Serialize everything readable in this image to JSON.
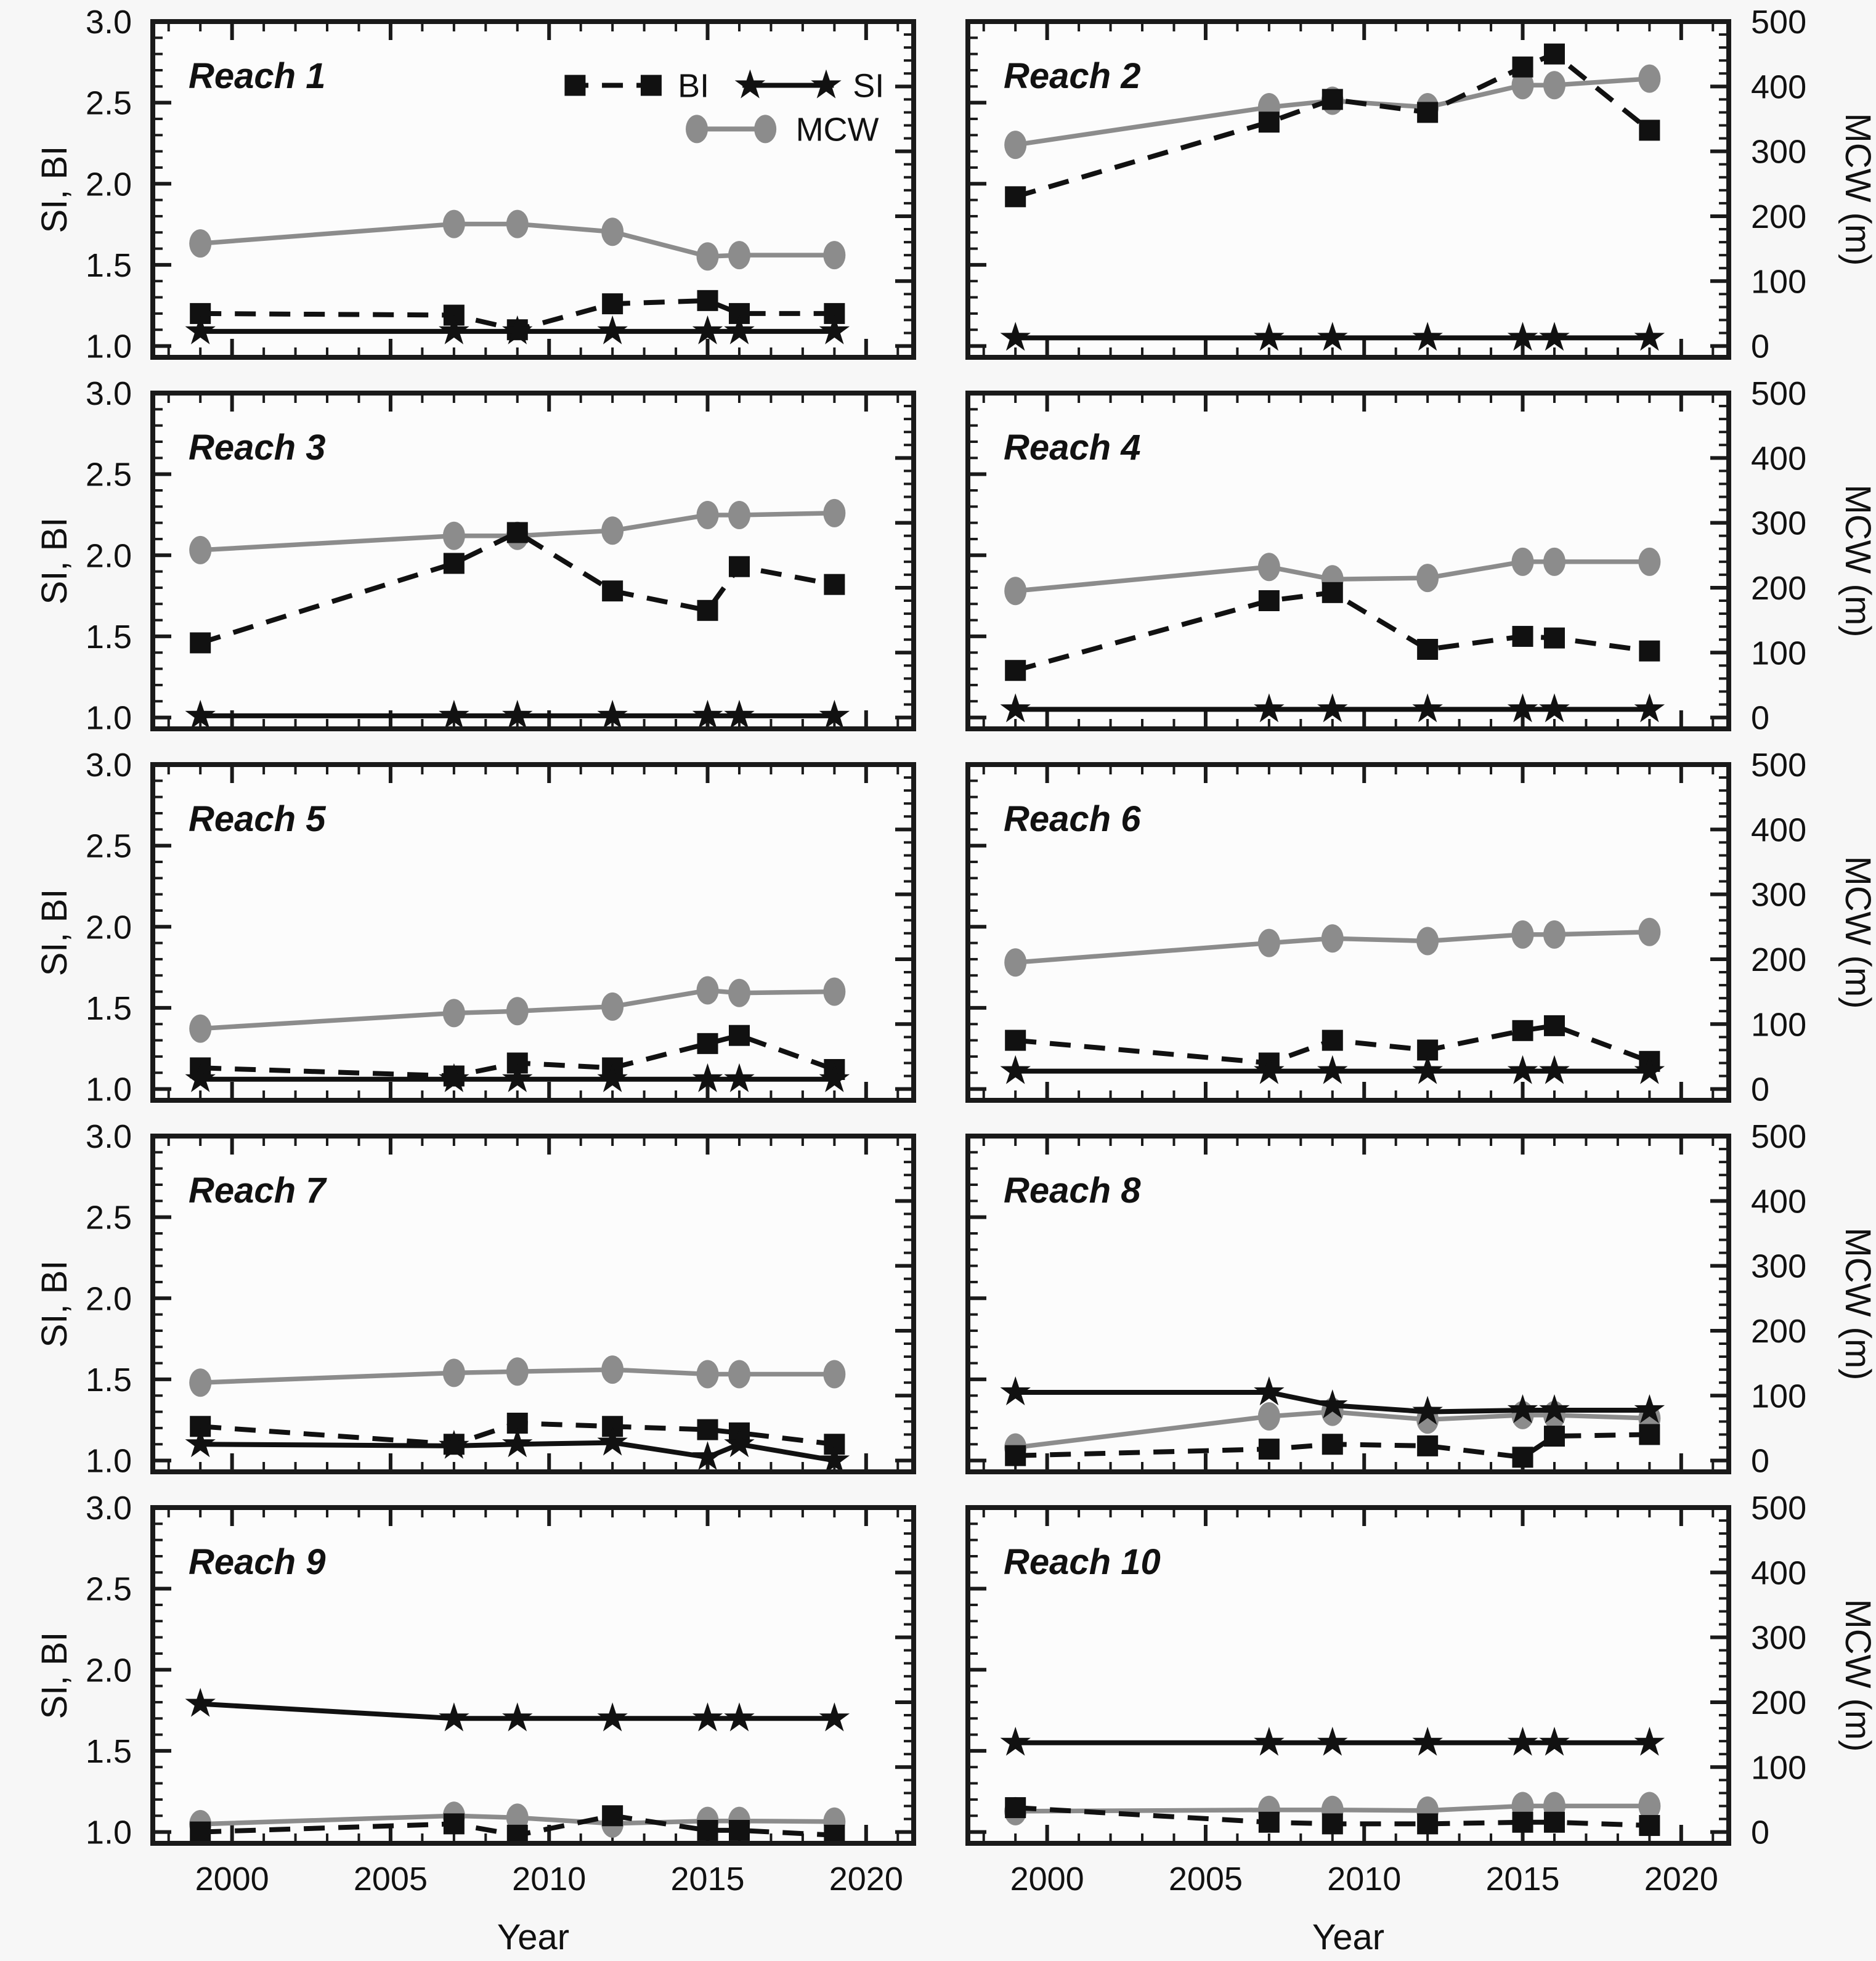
{
  "figure": {
    "background": "#f7f7f7",
    "panel_fill": "#fcfcfc",
    "axis_color": "#1a1a1a",
    "text_color": "#111111",
    "series_styles": {
      "BI": {
        "color": "#111111",
        "dashed": true,
        "marker": "square"
      },
      "SI": {
        "color": "#111111",
        "dashed": false,
        "marker": "star"
      },
      "MCW": {
        "color": "#8c8c8c",
        "dashed": false,
        "marker": "circle"
      }
    },
    "legend": {
      "items": [
        {
          "series": "BI",
          "label": "BI"
        },
        {
          "series": "SI",
          "label": "SI"
        },
        {
          "series": "MCW",
          "label": "MCW"
        }
      ]
    },
    "x_axis": {
      "label": "Year",
      "range": [
        1997.5,
        2021.5
      ],
      "major_ticks": [
        2000,
        2005,
        2010,
        2015,
        2020
      ],
      "tick_labels": [
        "2000",
        "2005",
        "2010",
        "2015",
        "2020"
      ],
      "minor_step": 1
    },
    "y_left": {
      "label": "SI, BI",
      "range": [
        0.93,
        3.0
      ],
      "major_ticks": [
        1.0,
        1.5,
        2.0,
        2.5,
        3.0
      ],
      "tick_labels": [
        "1.0",
        "1.5",
        "2.0",
        "2.5",
        "3.0"
      ],
      "minor_step": 0.1
    },
    "y_right": {
      "label": "MCW (m)",
      "range": [
        -17.5,
        500
      ],
      "major_ticks": [
        0,
        100,
        200,
        300,
        400,
        500
      ],
      "tick_labels": [
        "0",
        "100",
        "200",
        "300",
        "400",
        "500"
      ],
      "minor_step": 20
    },
    "grid": false,
    "layout": "5 rows x 2 columns; legend top-right of first panel; y-left labels on left column only; y-right labels on right column only; x labels on bottom row only"
  },
  "chart_data": [
    {
      "type": "line",
      "title": "Reach 1",
      "show_legend": true,
      "x": [
        1999,
        2007,
        2009,
        2012,
        2015,
        2016,
        2019
      ],
      "series": [
        {
          "name": "BI",
          "axis": "left",
          "values": [
            1.2,
            1.19,
            1.1,
            1.26,
            1.28,
            1.2,
            1.2
          ]
        },
        {
          "name": "SI",
          "axis": "left",
          "values": [
            1.09,
            1.09,
            1.09,
            1.09,
            1.09,
            1.09,
            1.09
          ]
        },
        {
          "name": "MCW",
          "axis": "right",
          "values": [
            158,
            188,
            188,
            176,
            138,
            140,
            140
          ]
        }
      ]
    },
    {
      "type": "line",
      "title": "Reach 2",
      "show_legend": false,
      "x": [
        1999,
        2007,
        2009,
        2012,
        2015,
        2016,
        2019
      ],
      "series": [
        {
          "name": "BI",
          "axis": "left",
          "values": [
            1.92,
            2.38,
            2.52,
            2.44,
            2.72,
            2.8,
            2.33
          ]
        },
        {
          "name": "SI",
          "axis": "left",
          "values": [
            1.05,
            1.05,
            1.05,
            1.05,
            1.05,
            1.05,
            1.05
          ]
        },
        {
          "name": "MCW",
          "axis": "right",
          "values": [
            310,
            368,
            378,
            368,
            402,
            402,
            412
          ]
        }
      ]
    },
    {
      "type": "line",
      "title": "Reach 3",
      "show_legend": false,
      "x": [
        1999,
        2007,
        2009,
        2012,
        2015,
        2016,
        2019
      ],
      "series": [
        {
          "name": "BI",
          "axis": "left",
          "values": [
            1.46,
            1.95,
            2.14,
            1.78,
            1.66,
            1.93,
            1.82
          ]
        },
        {
          "name": "SI",
          "axis": "left",
          "values": [
            1.01,
            1.01,
            1.01,
            1.01,
            1.01,
            1.01,
            1.01
          ]
        },
        {
          "name": "MCW",
          "axis": "right",
          "values": [
            258,
            280,
            280,
            288,
            312,
            312,
            315
          ]
        }
      ]
    },
    {
      "type": "line",
      "title": "Reach 4",
      "show_legend": false,
      "x": [
        1999,
        2007,
        2009,
        2012,
        2015,
        2016,
        2019
      ],
      "series": [
        {
          "name": "BI",
          "axis": "left",
          "values": [
            1.29,
            1.72,
            1.77,
            1.42,
            1.5,
            1.49,
            1.41
          ]
        },
        {
          "name": "SI",
          "axis": "left",
          "values": [
            1.05,
            1.05,
            1.05,
            1.05,
            1.05,
            1.05,
            1.05
          ]
        },
        {
          "name": "MCW",
          "axis": "right",
          "values": [
            195,
            232,
            213,
            215,
            240,
            240,
            240
          ]
        }
      ]
    },
    {
      "type": "line",
      "title": "Reach 5",
      "show_legend": false,
      "x": [
        1999,
        2007,
        2009,
        2012,
        2015,
        2016,
        2019
      ],
      "series": [
        {
          "name": "BI",
          "axis": "left",
          "values": [
            1.13,
            1.08,
            1.16,
            1.13,
            1.28,
            1.33,
            1.12
          ]
        },
        {
          "name": "SI",
          "axis": "left",
          "values": [
            1.06,
            1.06,
            1.06,
            1.06,
            1.06,
            1.06,
            1.06
          ]
        },
        {
          "name": "MCW",
          "axis": "right",
          "values": [
            93,
            117,
            120,
            127,
            152,
            148,
            150
          ]
        }
      ]
    },
    {
      "type": "line",
      "title": "Reach 6",
      "show_legend": false,
      "x": [
        1999,
        2007,
        2009,
        2012,
        2015,
        2016,
        2019
      ],
      "series": [
        {
          "name": "BI",
          "axis": "left",
          "values": [
            1.3,
            1.16,
            1.3,
            1.24,
            1.36,
            1.39,
            1.17
          ]
        },
        {
          "name": "SI",
          "axis": "left",
          "values": [
            1.11,
            1.11,
            1.11,
            1.11,
            1.11,
            1.11,
            1.11
          ]
        },
        {
          "name": "MCW",
          "axis": "right",
          "values": [
            195,
            225,
            232,
            228,
            238,
            238,
            242
          ]
        }
      ]
    },
    {
      "type": "line",
      "title": "Reach 7",
      "show_legend": false,
      "x": [
        1999,
        2007,
        2009,
        2012,
        2015,
        2016,
        2019
      ],
      "series": [
        {
          "name": "BI",
          "axis": "left",
          "values": [
            1.21,
            1.1,
            1.23,
            1.21,
            1.19,
            1.17,
            1.1
          ]
        },
        {
          "name": "SI",
          "axis": "left",
          "values": [
            1.1,
            1.09,
            1.1,
            1.11,
            1.02,
            1.1,
            1.0
          ]
        },
        {
          "name": "MCW",
          "axis": "right",
          "values": [
            120,
            135,
            137,
            140,
            133,
            133,
            133
          ]
        }
      ]
    },
    {
      "type": "line",
      "title": "Reach 8",
      "show_legend": false,
      "x": [
        1999,
        2007,
        2009,
        2012,
        2015,
        2016,
        2019
      ],
      "series": [
        {
          "name": "BI",
          "axis": "left",
          "values": [
            1.03,
            1.07,
            1.1,
            1.09,
            1.02,
            1.15,
            1.16
          ]
        },
        {
          "name": "SI",
          "axis": "left",
          "values": [
            1.42,
            1.42,
            1.34,
            1.3,
            1.31,
            1.31,
            1.31
          ]
        },
        {
          "name": "MCW",
          "axis": "right",
          "values": [
            20,
            68,
            75,
            63,
            70,
            70,
            65
          ]
        }
      ]
    },
    {
      "type": "line",
      "title": "Reach 9",
      "show_legend": false,
      "x": [
        1999,
        2007,
        2009,
        2012,
        2015,
        2016,
        2019
      ],
      "series": [
        {
          "name": "BI",
          "axis": "left",
          "values": [
            1.0,
            1.05,
            0.98,
            1.1,
            1.01,
            1.01,
            0.98
          ]
        },
        {
          "name": "SI",
          "axis": "left",
          "values": [
            1.79,
            1.7,
            1.7,
            1.7,
            1.7,
            1.7,
            1.7
          ]
        },
        {
          "name": "MCW",
          "axis": "right",
          "values": [
            12,
            25,
            22,
            13,
            17,
            17,
            16
          ]
        }
      ]
    },
    {
      "type": "line",
      "title": "Reach 10",
      "show_legend": false,
      "x": [
        1999,
        2007,
        2009,
        2012,
        2015,
        2016,
        2019
      ],
      "series": [
        {
          "name": "BI",
          "axis": "left",
          "values": [
            1.15,
            1.06,
            1.05,
            1.05,
            1.06,
            1.06,
            1.04
          ]
        },
        {
          "name": "SI",
          "axis": "left",
          "values": [
            1.55,
            1.55,
            1.55,
            1.55,
            1.55,
            1.55,
            1.55
          ]
        },
        {
          "name": "MCW",
          "axis": "right",
          "values": [
            32,
            34,
            34,
            33,
            40,
            40,
            40
          ]
        }
      ]
    }
  ]
}
